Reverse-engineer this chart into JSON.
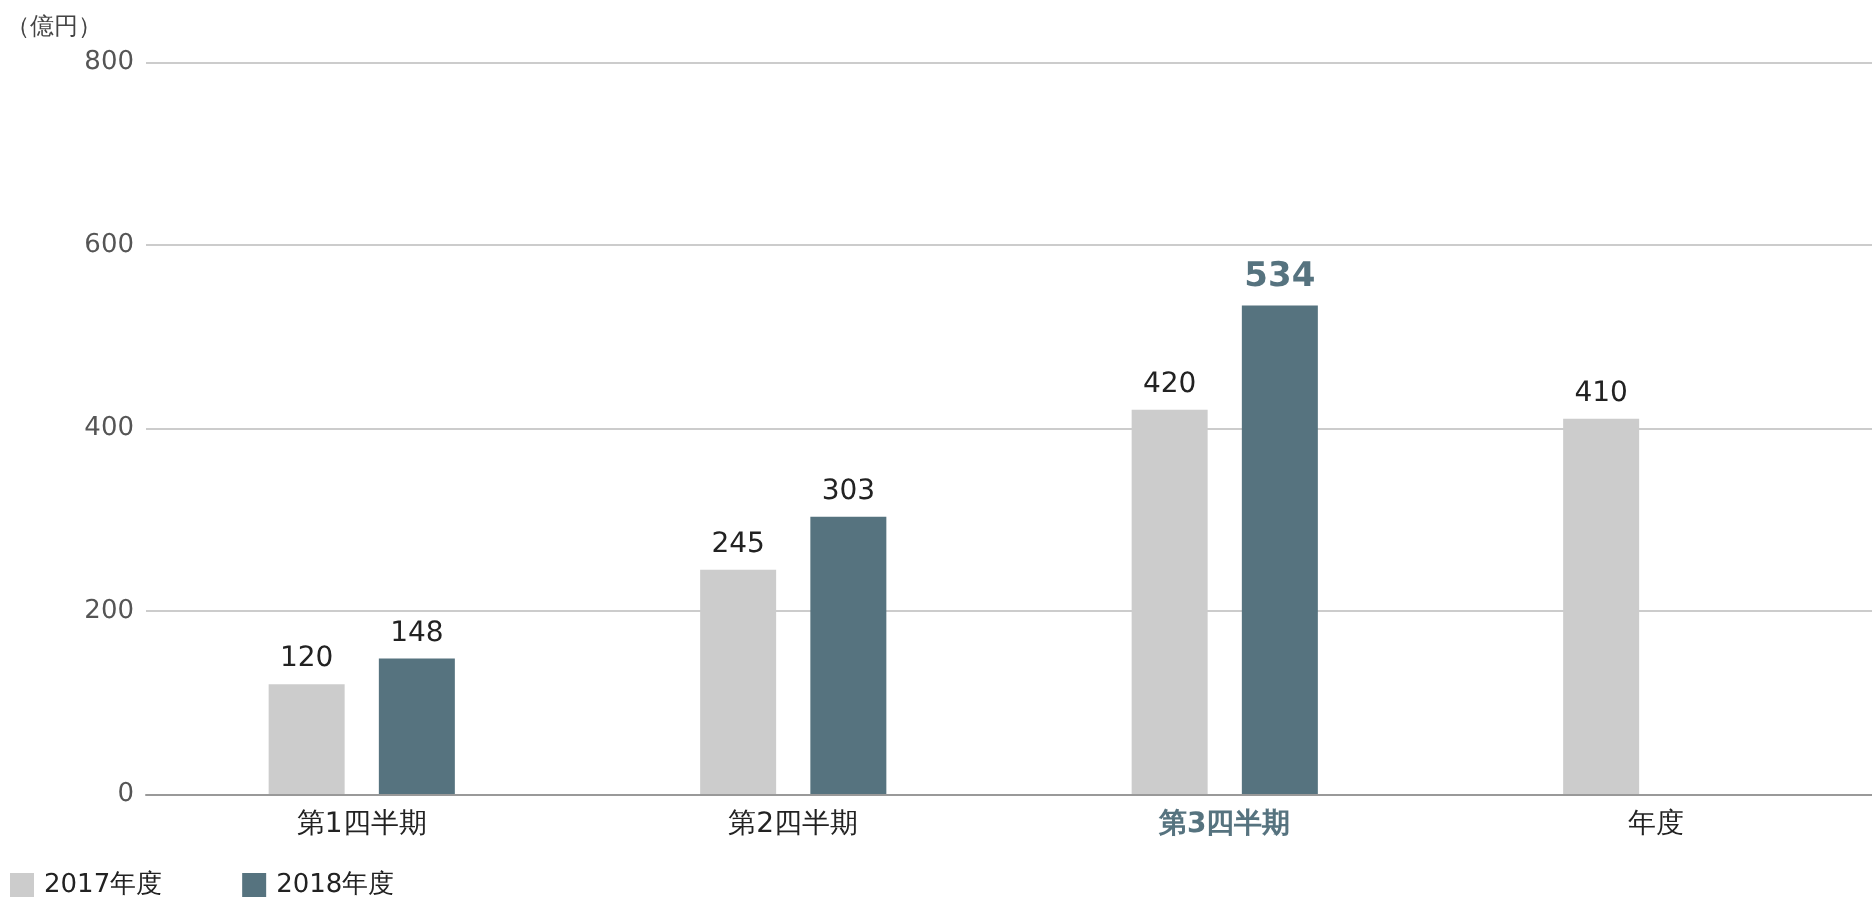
{
  "chart_data": {
    "type": "bar",
    "ylabel": "（億円）",
    "categories": [
      "第1四半期",
      "第2四半期",
      "第3四半期",
      "年度"
    ],
    "series": [
      {
        "name": "2017年度",
        "color": "#cccccc",
        "values": [
          120,
          245,
          420,
          410
        ]
      },
      {
        "name": "2018年度",
        "color": "#56737f",
        "values": [
          148,
          303,
          534,
          null
        ]
      }
    ],
    "ylim": [
      0,
      800
    ],
    "yticks": [
      0,
      200,
      400,
      600,
      800
    ],
    "grid": "y",
    "legend": "bottom left",
    "data_labels": true
  }
}
